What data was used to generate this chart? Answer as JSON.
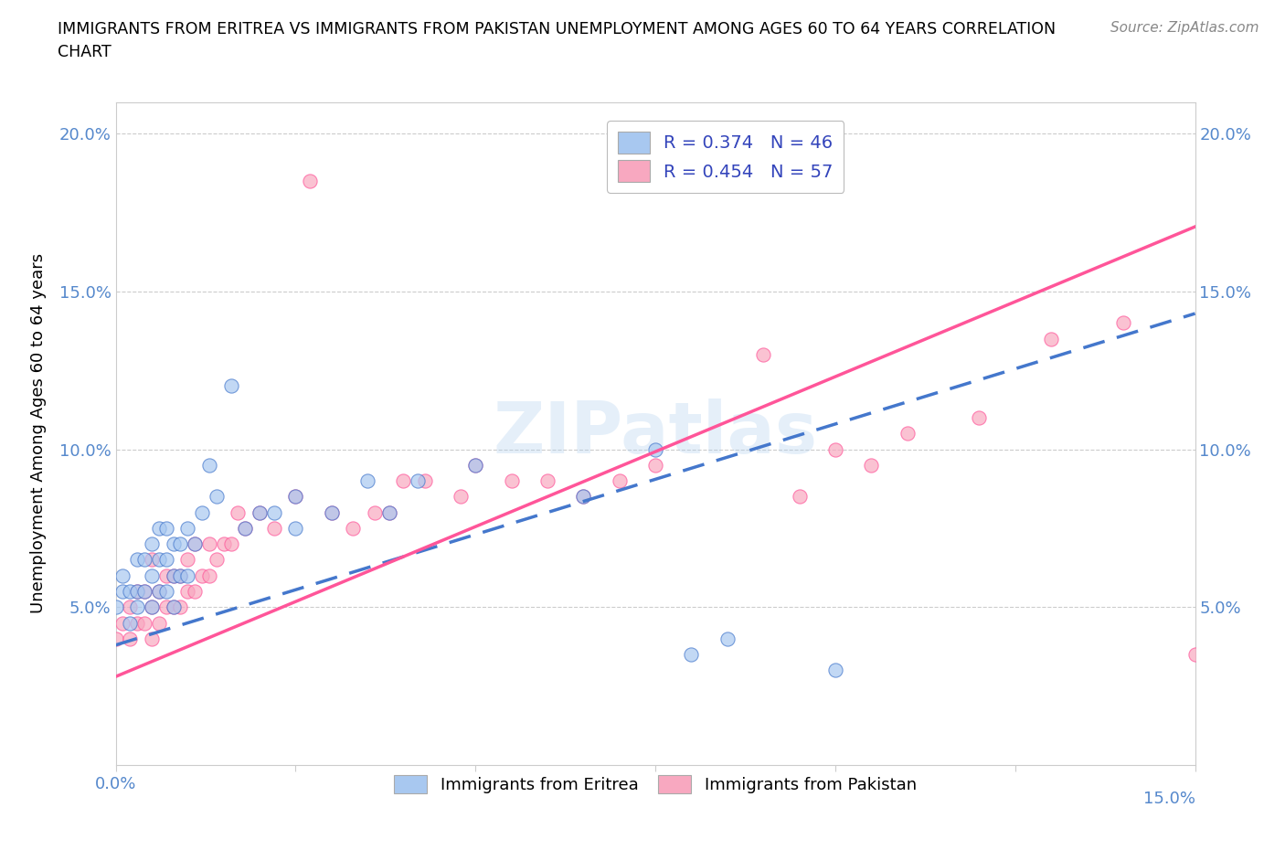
{
  "title": "IMMIGRANTS FROM ERITREA VS IMMIGRANTS FROM PAKISTAN UNEMPLOYMENT AMONG AGES 60 TO 64 YEARS CORRELATION\nCHART",
  "source": "Source: ZipAtlas.com",
  "ylabel_label": "Unemployment Among Ages 60 to 64 years",
  "xlim": [
    0.0,
    0.15
  ],
  "ylim": [
    0.0,
    0.21
  ],
  "yticks": [
    0.05,
    0.1,
    0.15,
    0.2
  ],
  "ytick_labels": [
    "5.0%",
    "10.0%",
    "15.0%",
    "20.0%"
  ],
  "xticks": [
    0.0,
    0.025,
    0.05,
    0.075,
    0.1,
    0.125,
    0.15
  ],
  "legend_eritrea": "R = 0.374   N = 46",
  "legend_pakistan": "R = 0.454   N = 57",
  "legend_eritrea_label": "Immigrants from Eritrea",
  "legend_pakistan_label": "Immigrants from Pakistan",
  "color_eritrea": "#A8C8F0",
  "color_pakistan": "#F8A8C0",
  "trendline_eritrea_color": "#4477CC",
  "trendline_pakistan_color": "#FF5599",
  "watermark": "ZIPatlas",
  "R_eritrea": 0.374,
  "N_eritrea": 46,
  "R_pakistan": 0.454,
  "N_pakistan": 57,
  "eritrea_x": [
    0.0,
    0.001,
    0.001,
    0.002,
    0.002,
    0.003,
    0.003,
    0.003,
    0.004,
    0.004,
    0.005,
    0.005,
    0.005,
    0.006,
    0.006,
    0.006,
    0.007,
    0.007,
    0.007,
    0.008,
    0.008,
    0.008,
    0.009,
    0.009,
    0.01,
    0.01,
    0.011,
    0.012,
    0.013,
    0.014,
    0.016,
    0.018,
    0.02,
    0.022,
    0.025,
    0.025,
    0.03,
    0.035,
    0.038,
    0.042,
    0.05,
    0.065,
    0.075,
    0.08,
    0.085,
    0.1
  ],
  "eritrea_y": [
    0.05,
    0.055,
    0.06,
    0.045,
    0.055,
    0.05,
    0.055,
    0.065,
    0.055,
    0.065,
    0.05,
    0.06,
    0.07,
    0.055,
    0.065,
    0.075,
    0.055,
    0.065,
    0.075,
    0.05,
    0.06,
    0.07,
    0.06,
    0.07,
    0.06,
    0.075,
    0.07,
    0.08,
    0.095,
    0.085,
    0.12,
    0.075,
    0.08,
    0.08,
    0.075,
    0.085,
    0.08,
    0.09,
    0.08,
    0.09,
    0.095,
    0.085,
    0.1,
    0.035,
    0.04,
    0.03
  ],
  "pakistan_x": [
    0.0,
    0.001,
    0.002,
    0.002,
    0.003,
    0.003,
    0.004,
    0.004,
    0.005,
    0.005,
    0.005,
    0.006,
    0.006,
    0.007,
    0.007,
    0.008,
    0.008,
    0.009,
    0.009,
    0.01,
    0.01,
    0.011,
    0.011,
    0.012,
    0.013,
    0.013,
    0.014,
    0.015,
    0.016,
    0.017,
    0.018,
    0.02,
    0.022,
    0.025,
    0.027,
    0.03,
    0.033,
    0.036,
    0.038,
    0.04,
    0.043,
    0.048,
    0.05,
    0.055,
    0.06,
    0.065,
    0.07,
    0.075,
    0.09,
    0.095,
    0.1,
    0.105,
    0.11,
    0.12,
    0.13,
    0.14,
    0.15
  ],
  "pakistan_y": [
    0.04,
    0.045,
    0.04,
    0.05,
    0.045,
    0.055,
    0.045,
    0.055,
    0.04,
    0.05,
    0.065,
    0.045,
    0.055,
    0.05,
    0.06,
    0.05,
    0.06,
    0.05,
    0.06,
    0.055,
    0.065,
    0.055,
    0.07,
    0.06,
    0.06,
    0.07,
    0.065,
    0.07,
    0.07,
    0.08,
    0.075,
    0.08,
    0.075,
    0.085,
    0.185,
    0.08,
    0.075,
    0.08,
    0.08,
    0.09,
    0.09,
    0.085,
    0.095,
    0.09,
    0.09,
    0.085,
    0.09,
    0.095,
    0.13,
    0.085,
    0.1,
    0.095,
    0.105,
    0.11,
    0.135,
    0.14,
    0.035
  ]
}
